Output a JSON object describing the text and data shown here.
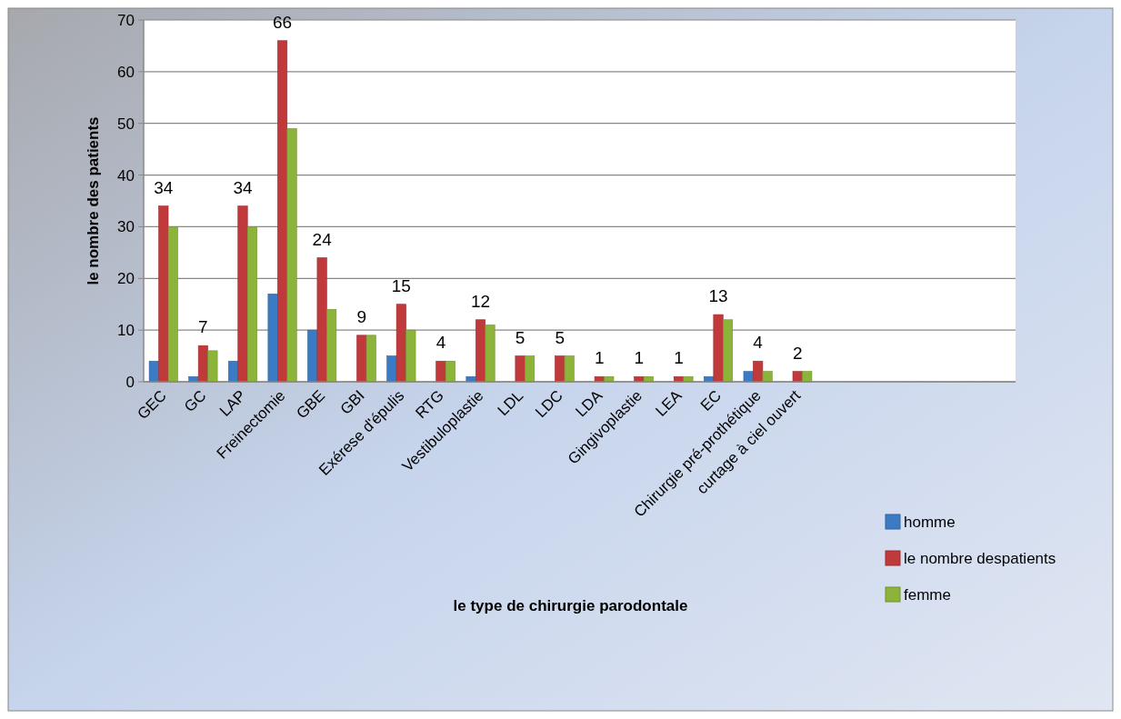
{
  "chart_data": {
    "type": "bar",
    "xlabel": "le type de chirurgie  parodontale",
    "ylabel": "le nombre des patients",
    "categories": [
      "GEC",
      "GC",
      "LAP",
      "Freinectomie",
      "GBE",
      "GBI",
      "Exérese d'épulis",
      "RTG",
      "Vestibuloplastie",
      "LDL",
      "LDC",
      "LDA",
      "Gingivoplastie",
      "LEA",
      "EC",
      "Chirurgie pré-prothétique",
      "curtage à ciel ouvert",
      null,
      null,
      null,
      null,
      null
    ],
    "series": [
      {
        "name": " homme",
        "color": "#3b7bc4",
        "values": [
          4,
          1,
          4,
          17,
          10,
          0,
          5,
          0,
          1,
          0,
          0,
          0,
          0,
          0,
          1,
          2,
          0,
          null,
          null,
          null,
          null,
          null
        ]
      },
      {
        "name": "le nombre despatients",
        "color": "#c0393b",
        "values": [
          34,
          7,
          34,
          66,
          24,
          9,
          15,
          4,
          12,
          5,
          5,
          1,
          1,
          1,
          13,
          4,
          2,
          null,
          null,
          null,
          null,
          null
        ],
        "value_labels": [
          "34",
          "7",
          "34",
          "66",
          "24",
          "9",
          "15",
          "4",
          "12",
          "5",
          "5",
          "1",
          "1",
          "1",
          "13",
          "4",
          "2",
          null,
          null,
          null,
          null,
          null
        ]
      },
      {
        "name": "femme",
        "color": "#8cb43a",
        "values": [
          30,
          6,
          30,
          49,
          14,
          9,
          10,
          4,
          11,
          5,
          5,
          1,
          1,
          1,
          12,
          2,
          2,
          null,
          null,
          null,
          null,
          null
        ]
      }
    ],
    "ylim": [
      0,
      70
    ],
    "yticks": [
      0,
      10,
      20,
      30,
      40,
      50,
      60,
      70
    ],
    "grid": "y",
    "legend": "right"
  }
}
